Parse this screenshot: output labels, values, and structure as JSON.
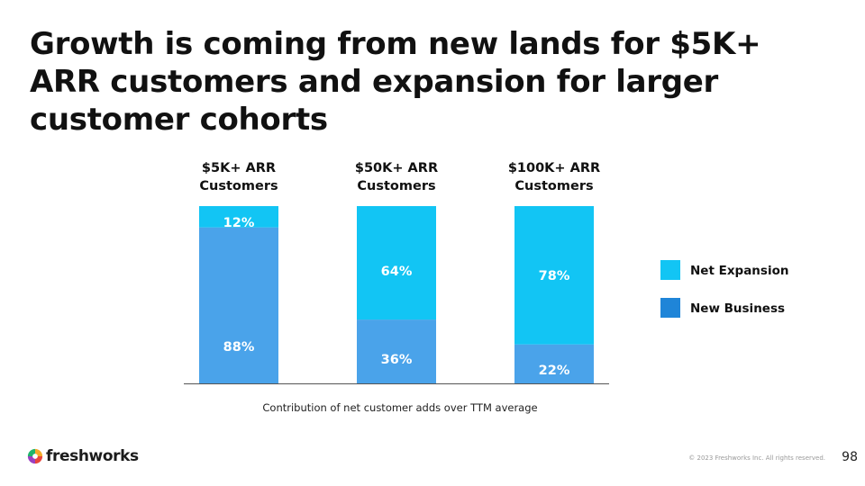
{
  "title": "Growth is coming from new lands for $5K+ ARR customers and expansion for larger customer cohorts",
  "chart_data": {
    "type": "bar",
    "stacked": true,
    "unit": "%",
    "categories": [
      [
        "$5K+ ARR",
        "Customers"
      ],
      [
        "$50K+ ARR",
        "Customers"
      ],
      [
        "$100K+ ARR",
        "Customers"
      ]
    ],
    "series": [
      {
        "name": "New Business",
        "values": [
          88,
          36,
          22
        ],
        "color": "#4aa3ea",
        "labels": [
          "88%",
          "36%",
          "22%"
        ]
      },
      {
        "name": "Net Expansion",
        "values": [
          12,
          64,
          78
        ],
        "color": "#12c5f4",
        "labels": [
          "12%",
          "64%",
          "78%"
        ]
      }
    ],
    "legend": {
      "position": "right",
      "entries": [
        {
          "name": "Net Expansion",
          "color": "#12c5f4"
        },
        {
          "name": "New Business",
          "color": "#1f85d8"
        }
      ]
    },
    "ylim": [
      0,
      100
    ],
    "xlabel": "Contribution of net customer adds over TTM average",
    "ylabel": "",
    "grid": false
  },
  "footer": {
    "brand": "freshworks",
    "copyright": "© 2023 Freshworks Inc. All rights reserved.",
    "page_number": "98"
  }
}
